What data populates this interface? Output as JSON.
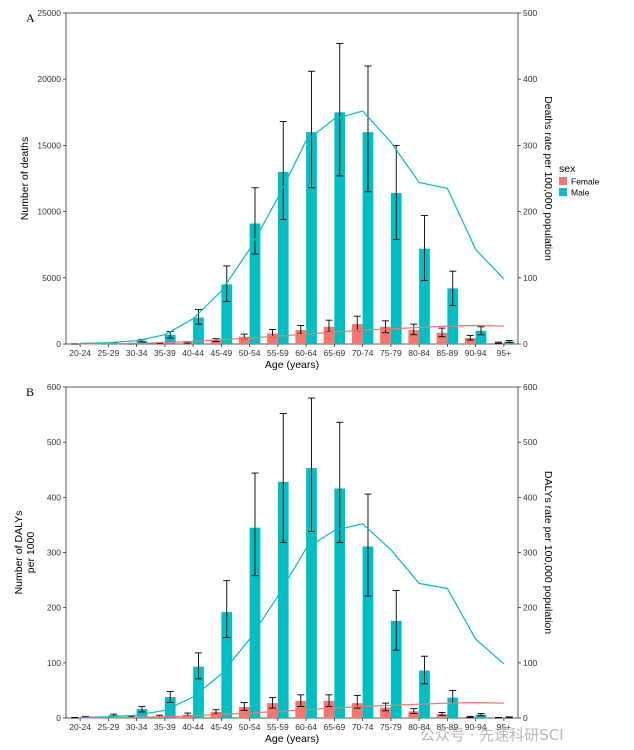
{
  "legend": {
    "title": "sex",
    "entries": [
      {
        "label": "Female",
        "color": "#F8766D"
      },
      {
        "label": "Male",
        "color": "#00BFC4"
      }
    ]
  },
  "watermark": "公众号 · 先速科研SCI",
  "chart_data": [
    {
      "panel": "A",
      "type": "bar",
      "xlabel": "Age (years)",
      "ylabel": "Number of deaths",
      "y2label": "Deaths rate per 100,000 population",
      "ylim": [
        0,
        25000
      ],
      "yticks": [
        0,
        5000,
        10000,
        15000,
        20000,
        25000
      ],
      "y2lim": [
        0,
        500
      ],
      "y2ticks": [
        0,
        100,
        200,
        300,
        400,
        500
      ],
      "categories": [
        "20-24",
        "25-29",
        "30-34",
        "35-39",
        "40-44",
        "45-49",
        "50-54",
        "55-59",
        "60-64",
        "65-69",
        "70-74",
        "75-79",
        "80-84",
        "85-89",
        "90-94",
        "95+"
      ],
      "series": [
        {
          "name": "Female",
          "color": "#F8766D",
          "values": [
            0,
            10,
            30,
            60,
            120,
            280,
            550,
            800,
            1050,
            1300,
            1500,
            1300,
            1050,
            850,
            450,
            90
          ],
          "lower": [
            0,
            5,
            15,
            30,
            70,
            180,
            400,
            550,
            750,
            900,
            1000,
            850,
            700,
            550,
            300,
            50
          ],
          "upper": [
            0,
            20,
            50,
            100,
            180,
            400,
            750,
            1100,
            1400,
            1800,
            2100,
            1750,
            1500,
            1200,
            650,
            140
          ]
        },
        {
          "name": "Male",
          "color": "#00BFC4",
          "values": [
            0,
            50,
            250,
            700,
            2000,
            4500,
            9100,
            13000,
            16000,
            17500,
            16000,
            11400,
            7200,
            4200,
            1000,
            180
          ],
          "lower": [
            0,
            20,
            150,
            450,
            1500,
            3200,
            6800,
            9400,
            11800,
            12700,
            11500,
            7900,
            4800,
            2900,
            700,
            110
          ],
          "upper": [
            0,
            80,
            350,
            950,
            2600,
            5900,
            11800,
            16800,
            20600,
            22700,
            21000,
            15000,
            9700,
            5500,
            1300,
            260
          ]
        }
      ],
      "rate_series": [
        {
          "name": "Female",
          "color": "#F8766D",
          "values": [
            0,
            0.5,
            1,
            2,
            4,
            6.5,
            9,
            12,
            15,
            18,
            21,
            23,
            25,
            27,
            28,
            27
          ]
        },
        {
          "name": "Male",
          "color": "#00BFC4",
          "values": [
            1,
            2,
            5,
            14,
            38,
            80,
            143,
            221,
            307,
            340,
            352,
            305,
            244,
            235,
            143,
            98
          ]
        }
      ]
    },
    {
      "panel": "B",
      "type": "bar",
      "xlabel": "Age (years)",
      "ylabel": "Number of DALYs",
      "ylabel2": "per 1000",
      "y2label": "DALYs rate per 100,000 population",
      "ylim": [
        0,
        600
      ],
      "yticks": [
        0,
        100,
        200,
        300,
        400,
        500,
        600
      ],
      "y2lim": [
        0,
        600
      ],
      "y2ticks": [
        0,
        100,
        200,
        300,
        400,
        500,
        600
      ],
      "categories": [
        "20-24",
        "25-29",
        "30-34",
        "35-39",
        "40-44",
        "45-49",
        "50-54",
        "55-59",
        "60-64",
        "65-69",
        "70-74",
        "75-79",
        "80-84",
        "85-89",
        "90-94",
        "95+"
      ],
      "series": [
        {
          "name": "Female",
          "color": "#F8766D",
          "values": [
            0.5,
            1,
            2,
            3,
            6,
            11,
            20,
            27,
            31,
            31,
            27,
            19,
            12,
            7,
            2,
            0.5
          ],
          "lower": [
            0.2,
            0.5,
            1,
            2,
            4,
            7,
            14,
            18,
            21,
            21,
            18,
            13,
            8,
            5,
            1,
            0.2
          ],
          "upper": [
            1,
            2,
            3,
            5,
            9,
            15,
            28,
            37,
            42,
            42,
            41,
            27,
            17,
            10,
            3,
            1
          ]
        },
        {
          "name": "Male",
          "color": "#00BFC4",
          "values": [
            2,
            5,
            16,
            38,
            93,
            192,
            345,
            428,
            453,
            416,
            311,
            176,
            86,
            37,
            6,
            1
          ],
          "lower": [
            1,
            3,
            11,
            28,
            71,
            146,
            258,
            318,
            338,
            318,
            221,
            123,
            62,
            27,
            4,
            0.5
          ],
          "upper": [
            3,
            7,
            21,
            48,
            118,
            249,
            444,
            552,
            580,
            536,
            406,
            231,
            112,
            50,
            8,
            2
          ]
        }
      ],
      "rate_series": [
        {
          "name": "Female",
          "color": "#F8766D",
          "values": [
            0,
            0.5,
            1,
            2,
            4,
            6.5,
            9,
            12,
            15,
            18,
            21,
            23,
            25,
            27,
            28,
            27
          ]
        },
        {
          "name": "Male",
          "color": "#00BFC4",
          "values": [
            1,
            2,
            5,
            14,
            38,
            80,
            143,
            221,
            307,
            340,
            352,
            305,
            244,
            235,
            143,
            98
          ]
        }
      ]
    }
  ]
}
